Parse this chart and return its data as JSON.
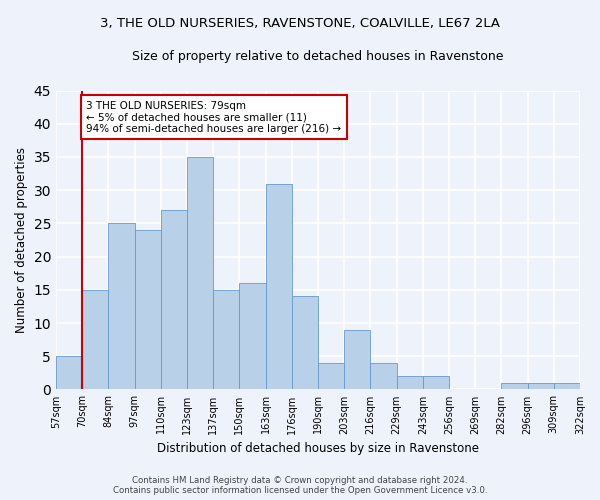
{
  "title": "3, THE OLD NURSERIES, RAVENSTONE, COALVILLE, LE67 2LA",
  "subtitle": "Size of property relative to detached houses in Ravenstone",
  "xlabel": "Distribution of detached houses by size in Ravenstone",
  "ylabel": "Number of detached properties",
  "bar_values": [
    5,
    15,
    25,
    24,
    27,
    35,
    15,
    16,
    31,
    14,
    4,
    9,
    4,
    2,
    2,
    0,
    0,
    1,
    1,
    1
  ],
  "bar_labels": [
    "57sqm",
    "70sqm",
    "84sqm",
    "97sqm",
    "110sqm",
    "123sqm",
    "137sqm",
    "150sqm",
    "163sqm",
    "176sqm",
    "190sqm",
    "203sqm",
    "216sqm",
    "229sqm",
    "243sqm",
    "256sqm",
    "269sqm",
    "282sqm",
    "296sqm",
    "309sqm",
    "322sqm"
  ],
  "bar_color": "#b8d0e8",
  "bar_edge_color": "#6699cc",
  "background_color": "#eef2fb",
  "grid_color": "#ffffff",
  "vline_color": "#cc0000",
  "vline_x_index": 1,
  "annotation_text": "3 THE OLD NURSERIES: 79sqm\n← 5% of detached houses are smaller (11)\n94% of semi-detached houses are larger (216) →",
  "annotation_box_facecolor": "#ffffff",
  "annotation_box_edgecolor": "#cc0000",
  "ylim": [
    0,
    45
  ],
  "yticks": [
    0,
    5,
    10,
    15,
    20,
    25,
    30,
    35,
    40,
    45
  ],
  "footer_line1": "Contains HM Land Registry data © Crown copyright and database right 2024.",
  "footer_line2": "Contains public sector information licensed under the Open Government Licence v3.0."
}
